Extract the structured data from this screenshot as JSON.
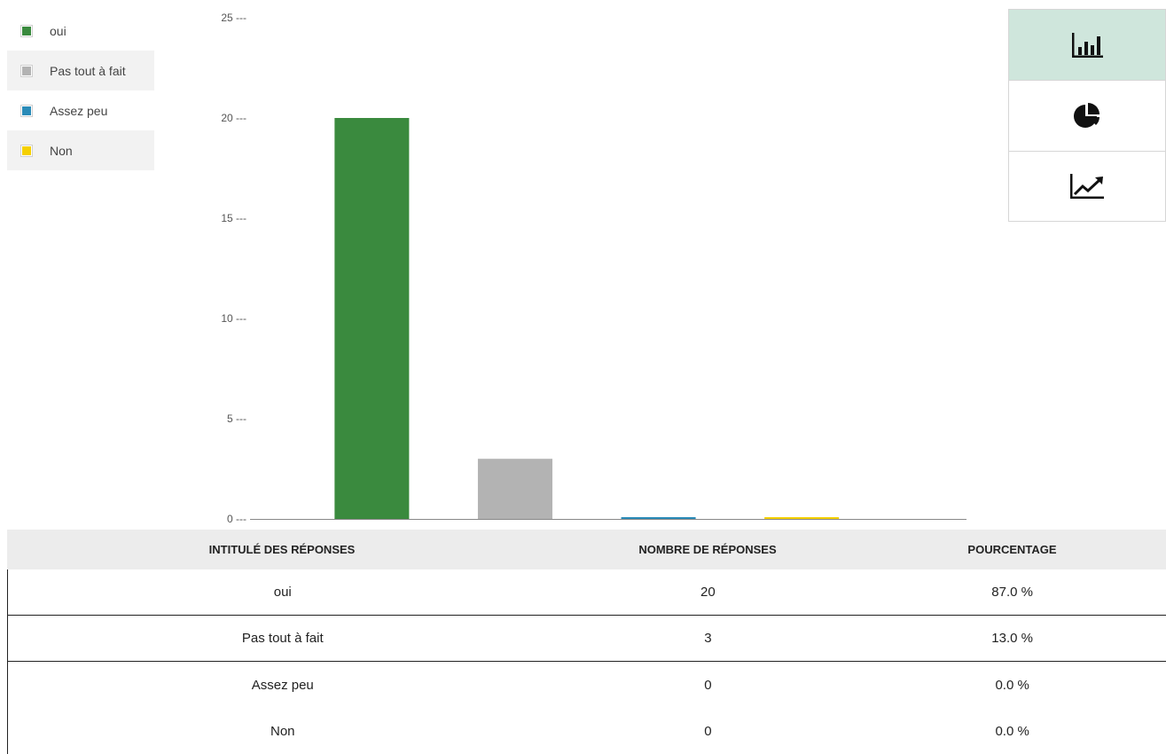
{
  "legend": {
    "items": [
      {
        "label": "oui",
        "color": "#3a8a3e"
      },
      {
        "label": "Pas tout à fait",
        "color": "#b3b3b3"
      },
      {
        "label": "Assez peu",
        "color": "#2a8bb8"
      },
      {
        "label": "Non",
        "color": "#f5d000"
      }
    ]
  },
  "chart_data": {
    "type": "bar",
    "categories": [
      "oui",
      "Pas tout à fait",
      "Assez peu",
      "Non"
    ],
    "values": [
      20,
      3,
      0,
      0
    ],
    "colors": [
      "#3a8a3e",
      "#b3b3b3",
      "#2a8bb8",
      "#f5d000"
    ],
    "ylim": [
      0,
      25
    ],
    "yticks": [
      0,
      5,
      10,
      15,
      20,
      25
    ],
    "ytick_labels": [
      "0 ---",
      "5 ---",
      "10 ---",
      "15 ---",
      "20 ---",
      "25 ---"
    ],
    "grid": false,
    "legend": "top-left"
  },
  "switcher": {
    "buttons": [
      {
        "icon": "bar-chart-icon",
        "active": true
      },
      {
        "icon": "pie-chart-icon",
        "active": false
      },
      {
        "icon": "line-chart-icon",
        "active": false
      }
    ]
  },
  "table": {
    "headers": [
      "INTITULÉ DES RÉPONSES",
      "NOMBRE DE RÉPONSES",
      "POURCENTAGE"
    ],
    "rows": [
      [
        "oui",
        "20",
        "87.0 %"
      ],
      [
        "Pas tout à fait",
        "3",
        "13.0 %"
      ],
      [
        "Assez peu",
        "0",
        "0.0 %"
      ],
      [
        "Non",
        "0",
        "0.0 %"
      ]
    ]
  }
}
